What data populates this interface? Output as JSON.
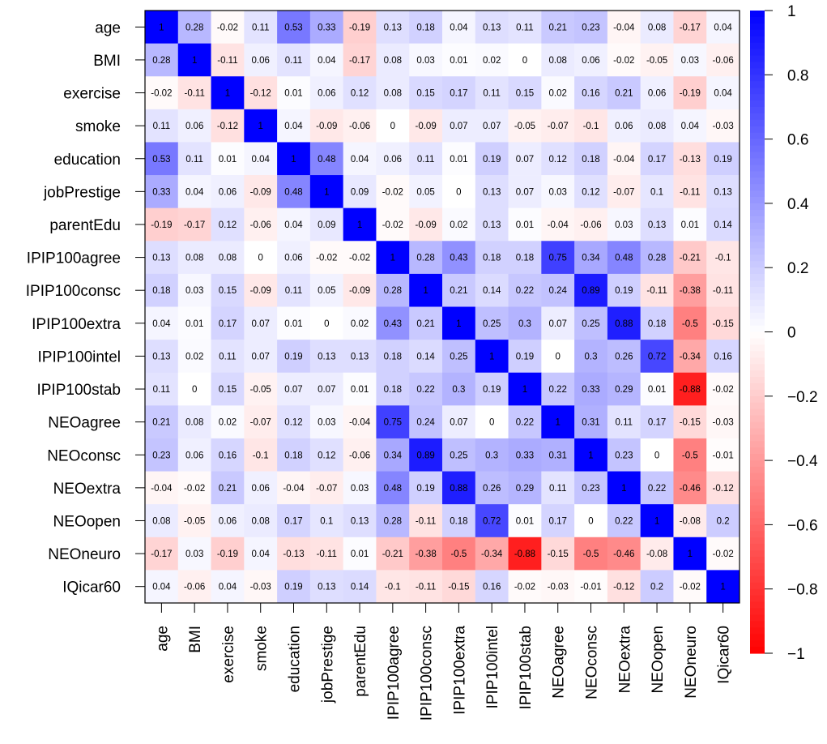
{
  "chart_data": {
    "type": "heatmap",
    "title": "",
    "variables": [
      "age",
      "BMI",
      "exercise",
      "smoke",
      "education",
      "jobPrestige",
      "parentEdu",
      "IPIP100agree",
      "IPIP100consc",
      "IPIP100extra",
      "IPIP100intel",
      "IPIP100stab",
      "NEOagree",
      "NEOconsc",
      "NEOextra",
      "NEOopen",
      "NEOneuro",
      "IQicar60"
    ],
    "matrix": [
      [
        1,
        0.28,
        -0.02,
        0.11,
        0.53,
        0.33,
        -0.19,
        0.13,
        0.18,
        0.04,
        0.13,
        0.11,
        0.21,
        0.23,
        -0.04,
        0.08,
        -0.17,
        0.04
      ],
      [
        0.28,
        1,
        -0.11,
        0.06,
        0.11,
        0.04,
        -0.17,
        0.08,
        0.03,
        0.01,
        0.02,
        0,
        0.08,
        0.06,
        -0.02,
        -0.05,
        0.03,
        -0.06
      ],
      [
        -0.02,
        -0.11,
        1,
        -0.12,
        0.01,
        0.06,
        0.12,
        0.08,
        0.15,
        0.17,
        0.11,
        0.15,
        0.02,
        0.16,
        0.21,
        0.06,
        -0.19,
        0.04
      ],
      [
        0.11,
        0.06,
        -0.12,
        1,
        0.04,
        -0.09,
        -0.06,
        0,
        -0.09,
        0.07,
        0.07,
        -0.05,
        -0.07,
        -0.1,
        0.06,
        0.08,
        0.04,
        -0.03
      ],
      [
        0.53,
        0.11,
        0.01,
        0.04,
        1,
        0.48,
        0.04,
        0.06,
        0.11,
        0.01,
        0.19,
        0.07,
        0.12,
        0.18,
        -0.04,
        0.17,
        -0.13,
        0.19
      ],
      [
        0.33,
        0.04,
        0.06,
        -0.09,
        0.48,
        1,
        0.09,
        -0.02,
        0.05,
        0,
        0.13,
        0.07,
        0.03,
        0.12,
        -0.07,
        0.1,
        -0.11,
        0.13
      ],
      [
        -0.19,
        -0.17,
        0.12,
        -0.06,
        0.04,
        0.09,
        1,
        -0.02,
        -0.09,
        0.02,
        0.13,
        0.01,
        -0.04,
        -0.06,
        0.03,
        0.13,
        0.01,
        0.14
      ],
      [
        0.13,
        0.08,
        0.08,
        0,
        0.06,
        -0.02,
        -0.02,
        1,
        0.28,
        0.43,
        0.18,
        0.18,
        0.75,
        0.34,
        0.48,
        0.28,
        -0.21,
        -0.1
      ],
      [
        0.18,
        0.03,
        0.15,
        -0.09,
        0.11,
        0.05,
        -0.09,
        0.28,
        1,
        0.21,
        0.14,
        0.22,
        0.24,
        0.89,
        0.19,
        -0.11,
        -0.38,
        -0.11
      ],
      [
        0.04,
        0.01,
        0.17,
        0.07,
        0.01,
        0,
        0.02,
        0.43,
        0.21,
        1,
        0.25,
        0.3,
        0.07,
        0.25,
        0.88,
        0.18,
        -0.5,
        -0.15
      ],
      [
        0.13,
        0.02,
        0.11,
        0.07,
        0.19,
        0.13,
        0.13,
        0.18,
        0.14,
        0.25,
        1,
        0.19,
        0,
        0.3,
        0.26,
        0.72,
        -0.34,
        0.16
      ],
      [
        0.11,
        0,
        0.15,
        -0.05,
        0.07,
        0.07,
        0.01,
        0.18,
        0.22,
        0.3,
        0.19,
        1,
        0.22,
        0.33,
        0.29,
        0.01,
        -0.88,
        -0.02
      ],
      [
        0.21,
        0.08,
        0.02,
        -0.07,
        0.12,
        0.03,
        -0.04,
        0.75,
        0.24,
        0.07,
        0,
        0.22,
        1,
        0.31,
        0.11,
        0.17,
        -0.15,
        -0.03
      ],
      [
        0.23,
        0.06,
        0.16,
        -0.1,
        0.18,
        0.12,
        -0.06,
        0.34,
        0.89,
        0.25,
        0.3,
        0.33,
        0.31,
        1,
        0.23,
        0,
        -0.5,
        -0.01
      ],
      [
        -0.04,
        -0.02,
        0.21,
        0.06,
        -0.04,
        -0.07,
        0.03,
        0.48,
        0.19,
        0.88,
        0.26,
        0.29,
        0.11,
        0.23,
        1,
        0.22,
        -0.46,
        -0.12
      ],
      [
        0.08,
        -0.05,
        0.06,
        0.08,
        0.17,
        0.1,
        0.13,
        0.28,
        -0.11,
        0.18,
        0.72,
        0.01,
        0.17,
        0,
        0.22,
        1,
        -0.08,
        0.2
      ],
      [
        -0.17,
        0.03,
        -0.19,
        0.04,
        -0.13,
        -0.11,
        0.01,
        -0.21,
        -0.38,
        -0.5,
        -0.34,
        -0.88,
        -0.15,
        -0.5,
        -0.46,
        -0.08,
        1,
        -0.02
      ],
      [
        0.04,
        -0.06,
        0.04,
        -0.03,
        0.19,
        0.13,
        0.14,
        -0.1,
        -0.11,
        -0.15,
        0.16,
        -0.02,
        -0.03,
        -0.01,
        -0.12,
        0.2,
        -0.02,
        1
      ]
    ],
    "color_scale": {
      "range": [
        -1,
        1
      ],
      "low_color": "#ff0000",
      "mid_color": "#ffffff",
      "high_color": "#0000ff",
      "ticks": [
        1,
        0.8,
        0.6,
        0.4,
        0.2,
        0,
        -0.2,
        -0.4,
        -0.6,
        -0.8,
        -1
      ],
      "tick_labels": [
        "1",
        "0.8",
        "0.6",
        "0.4",
        "0.2",
        "0",
        "−0.2",
        "−0.4",
        "−0.6",
        "−0.8",
        "−1"
      ]
    },
    "legend_position": "right"
  }
}
